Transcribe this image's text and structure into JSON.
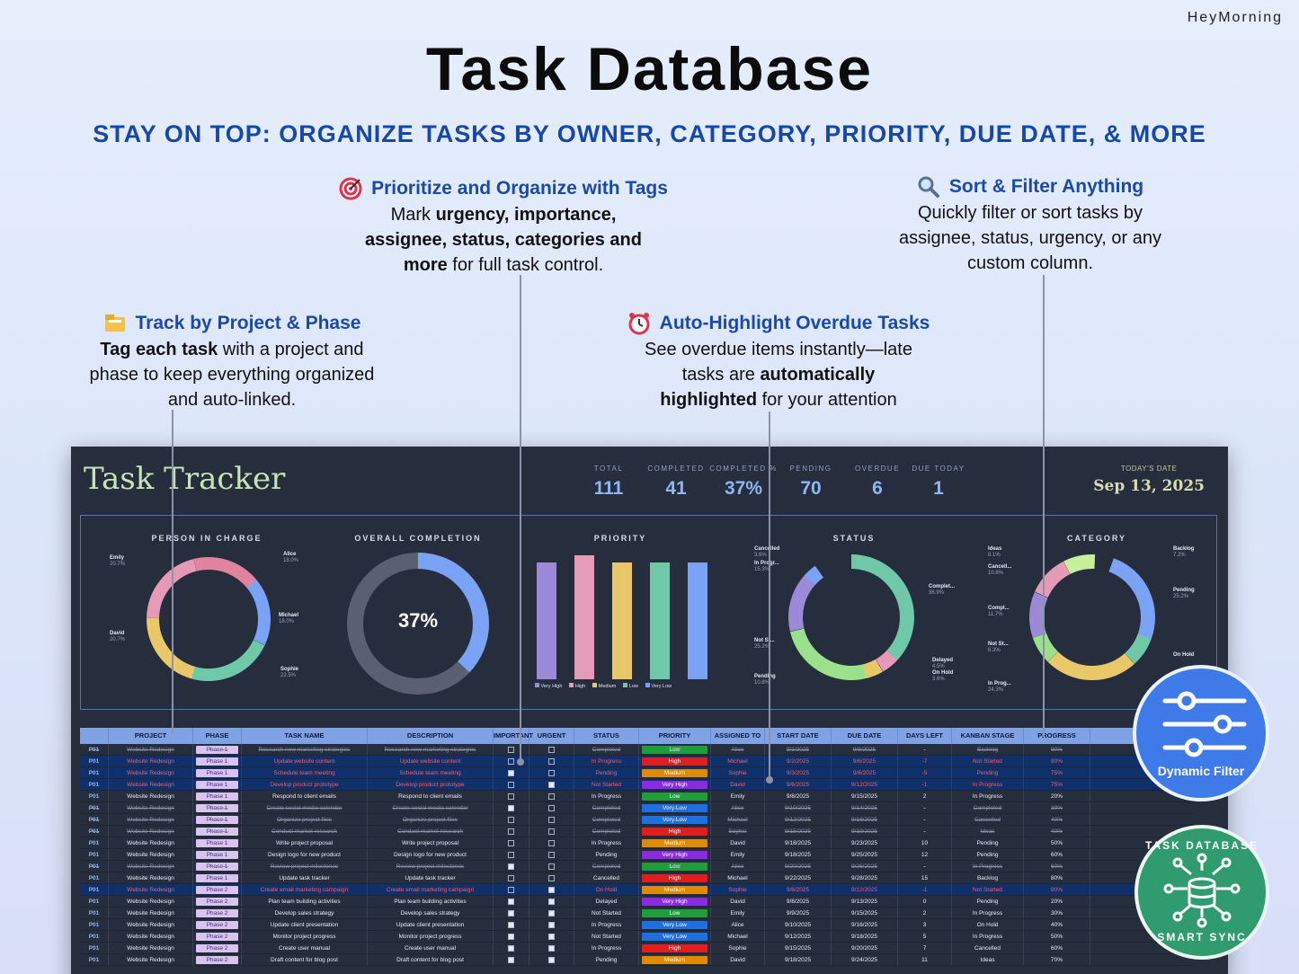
{
  "brand": "HeyMorning",
  "title": "Task Database",
  "subtitle": "STAY ON TOP: ORGANIZE TASKS BY OWNER, CATEGORY, PRIORITY, DUE DATE, & MORE",
  "features": {
    "tags": {
      "heading": "Prioritize and Organize with Tags",
      "l1a": "Mark ",
      "l1b": "urgency, importance,",
      "l2": "assignee, status, categories and",
      "l3a": "more",
      "l3b": " for full task control."
    },
    "sort": {
      "heading": "Sort & Filter Anything",
      "l1": "Quickly filter or sort tasks by",
      "l2": "assignee, status, urgency, or any",
      "l3": "custom column."
    },
    "project": {
      "heading": "Track by Project & Phase",
      "l1a": "Tag each task",
      "l1b": " with a project and",
      "l2": "phase to keep everything organized",
      "l3": "and auto-linked."
    },
    "overdue": {
      "heading": "Auto-Highlight Overdue Tasks",
      "l1": "See overdue items instantly—late",
      "l2a": "tasks are ",
      "l2b": "automatically",
      "l3a": "highlighted",
      "l3b": " for your attention"
    }
  },
  "dashboard": {
    "app_title": "Task Tracker",
    "kpis": [
      {
        "label": "TOTAL",
        "value": "111"
      },
      {
        "label": "COMPLETED",
        "value": "41"
      },
      {
        "label": "COMPLETED %",
        "value": "37%"
      },
      {
        "label": "PENDING",
        "value": "70"
      },
      {
        "label": "OVERDUE",
        "value": "6"
      },
      {
        "label": "DUE TODAY",
        "value": "1"
      }
    ],
    "today_label": "TODAY'S DATE",
    "today_value": "Sep 13, 2025",
    "charts": {
      "person": {
        "title": "PERSON IN CHARGE",
        "labels": [
          {
            "name": "Emily",
            "pct": "20.7%"
          },
          {
            "name": "Alice",
            "pct": "18.0%"
          },
          {
            "name": "Michael",
            "pct": "18.0%"
          },
          {
            "name": "Sophie",
            "pct": "22.5%"
          },
          {
            "name": "David",
            "pct": "20.7%"
          }
        ]
      },
      "completion": {
        "title": "OVERALL COMPLETION",
        "value": "37%"
      },
      "priority": {
        "title": "PRIORITY",
        "legend": [
          "Very High",
          "High",
          "Medium",
          "Low",
          "Very Low"
        ]
      },
      "status": {
        "title": "STATUS",
        "labels": [
          {
            "name": "Cancelled",
            "pct": "3.6%"
          },
          {
            "name": "In Progr...",
            "pct": "15.3%"
          },
          {
            "name": "Complet...",
            "pct": "36.9%"
          },
          {
            "name": "Not St...",
            "pct": "25.2%"
          },
          {
            "name": "Pending",
            "pct": "10.8%"
          },
          {
            "name": "Delayed",
            "pct": "4.5%"
          },
          {
            "name": "On Hold",
            "pct": "3.6%"
          }
        ]
      },
      "category": {
        "title": "CATEGORY",
        "labels": [
          {
            "name": "Ideas",
            "pct": "8.1%"
          },
          {
            "name": "Cancell...",
            "pct": "10.8%"
          },
          {
            "name": "Compl...",
            "pct": "11.7%"
          },
          {
            "name": "Not St...",
            "pct": "6.3%"
          },
          {
            "name": "In Prog...",
            "pct": "24.3%"
          },
          {
            "name": "Backlog",
            "pct": "7.2%"
          },
          {
            "name": "Pending",
            "pct": "25.2%"
          },
          {
            "name": "On Hold",
            "pct": ""
          }
        ]
      }
    },
    "columns": [
      "PROJECT",
      "PHASE",
      "TASK NAME",
      "DESCRIPTION",
      "IMPORTANT",
      "URGENT",
      "STATUS",
      "PRIORITY",
      "ASSIGNED TO",
      "START DATE",
      "DUE DATE",
      "DAYS LEFT",
      "KANBAN STAGE",
      "PROGRESS"
    ],
    "rows": [
      {
        "id": "P01",
        "project": "Website Redesign",
        "phase": "Phase 1",
        "task": "Research new marketing strategies",
        "desc": "Research new marketing strategies",
        "imp": false,
        "urg": false,
        "status": "Completed",
        "priority": "Low",
        "owner": "Alice",
        "start": "9/1/2025",
        "due": "9/8/2025",
        "days": "-",
        "kanban": "Backlog",
        "progress": "90%",
        "kind": "done"
      },
      {
        "id": "P01",
        "project": "Website Redesign",
        "phase": "Phase 1",
        "task": "Update website content",
        "desc": "Update website content",
        "imp": false,
        "urg": false,
        "status": "In Progress",
        "priority": "High",
        "owner": "Michael",
        "start": "9/2/2025",
        "due": "9/6/2025",
        "days": "-7",
        "kanban": "Not Started",
        "progress": "80%",
        "kind": "over"
      },
      {
        "id": "P01",
        "project": "Website Redesign",
        "phase": "Phase 1",
        "task": "Schedule team meeting",
        "desc": "Schedule team meeting",
        "imp": true,
        "urg": false,
        "status": "Pending",
        "priority": "Medium",
        "owner": "Sophie",
        "start": "9/3/2025",
        "due": "9/8/2025",
        "days": "-5",
        "kanban": "Pending",
        "progress": "75%",
        "kind": "over"
      },
      {
        "id": "P01",
        "project": "Website Redesign",
        "phase": "Phase 1",
        "task": "Develop product prototype",
        "desc": "Develop product prototype",
        "imp": false,
        "urg": true,
        "status": "Not Started",
        "priority": "Very High",
        "owner": "David",
        "start": "9/6/2025",
        "due": "9/12/2025",
        "days": "-1",
        "kanban": "In Progress",
        "progress": "75%",
        "kind": "over"
      },
      {
        "id": "P01",
        "project": "Website Redesign",
        "phase": "Phase 1",
        "task": "Respond to client emails",
        "desc": "Respond to client emails",
        "imp": false,
        "urg": false,
        "status": "In Progress",
        "priority": "Low",
        "owner": "Emily",
        "start": "9/8/2025",
        "due": "9/15/2025",
        "days": "2",
        "kanban": "In Progress",
        "progress": "20%",
        "kind": ""
      },
      {
        "id": "P01",
        "project": "Website Redesign",
        "phase": "Phase 1",
        "task": "Create social media calendar",
        "desc": "Create social media calendar",
        "imp": true,
        "urg": false,
        "status": "Completed",
        "priority": "Very Low",
        "owner": "Alice",
        "start": "9/10/2025",
        "due": "9/14/2025",
        "days": "-",
        "kanban": "Completed",
        "progress": "30%",
        "kind": "done"
      },
      {
        "id": "P01",
        "project": "Website Redesign",
        "phase": "Phase 1",
        "task": "Organize project files",
        "desc": "Organize project files",
        "imp": false,
        "urg": false,
        "status": "Completed",
        "priority": "Very Low",
        "owner": "Michael",
        "start": "9/12/2025",
        "due": "9/18/2025",
        "days": "-",
        "kanban": "Cancelled",
        "progress": "40%",
        "kind": "done"
      },
      {
        "id": "P01",
        "project": "Website Redesign",
        "phase": "Phase 1",
        "task": "Conduct market research",
        "desc": "Conduct market research",
        "imp": false,
        "urg": false,
        "status": "Completed",
        "priority": "High",
        "owner": "Sophie",
        "start": "9/15/2025",
        "due": "9/19/2025",
        "days": "-",
        "kanban": "Ideas",
        "progress": "40%",
        "kind": "done"
      },
      {
        "id": "P01",
        "project": "Website Redesign",
        "phase": "Phase 1",
        "task": "Write project proposal",
        "desc": "Write project proposal",
        "imp": false,
        "urg": false,
        "status": "In Progress",
        "priority": "Medium",
        "owner": "David",
        "start": "9/18/2025",
        "due": "9/23/2025",
        "days": "10",
        "kanban": "Pending",
        "progress": "50%",
        "kind": ""
      },
      {
        "id": "P01",
        "project": "Website Redesign",
        "phase": "Phase 1",
        "task": "Design logo for new product",
        "desc": "Design logo for new product",
        "imp": false,
        "urg": false,
        "status": "Pending",
        "priority": "Very High",
        "owner": "Emily",
        "start": "9/18/2025",
        "due": "9/25/2025",
        "days": "12",
        "kanban": "Pending",
        "progress": "60%",
        "kind": ""
      },
      {
        "id": "P01",
        "project": "Website Redesign",
        "phase": "Phase 1",
        "task": "Review project milestones",
        "desc": "Review project milestones",
        "imp": true,
        "urg": false,
        "status": "Completed",
        "priority": "Low",
        "owner": "Alice",
        "start": "9/20/2025",
        "due": "9/26/2025",
        "days": "-",
        "kanban": "In Progress",
        "progress": "60%",
        "kind": "done"
      },
      {
        "id": "P01",
        "project": "Website Redesign",
        "phase": "Phase 1",
        "task": "Update task tracker",
        "desc": "Update task tracker",
        "imp": false,
        "urg": false,
        "status": "Cancelled",
        "priority": "High",
        "owner": "Michael",
        "start": "9/22/2025",
        "due": "9/28/2025",
        "days": "15",
        "kanban": "Backlog",
        "progress": "80%",
        "kind": ""
      },
      {
        "id": "P01",
        "project": "Website Redesign",
        "phase": "Phase 2",
        "task": "Create email marketing campaign",
        "desc": "Create email marketing campaign",
        "imp": false,
        "urg": true,
        "status": "On Hold",
        "priority": "Medium",
        "owner": "Sophie",
        "start": "9/6/2025",
        "due": "9/12/2025",
        "days": "-1",
        "kanban": "Not Started",
        "progress": "90%",
        "kind": "over"
      },
      {
        "id": "P01",
        "project": "Website Redesign",
        "phase": "Phase 2",
        "task": "Plan team building activities",
        "desc": "Plan team building activities",
        "imp": true,
        "urg": true,
        "status": "Delayed",
        "priority": "Very High",
        "owner": "David",
        "start": "9/8/2025",
        "due": "9/13/2025",
        "days": "0",
        "kanban": "Pending",
        "progress": "20%",
        "kind": ""
      },
      {
        "id": "P01",
        "project": "Website Redesign",
        "phase": "Phase 2",
        "task": "Develop sales strategy",
        "desc": "Develop sales strategy",
        "imp": true,
        "urg": true,
        "status": "Not Started",
        "priority": "Low",
        "owner": "Emily",
        "start": "9/9/2025",
        "due": "9/15/2025",
        "days": "2",
        "kanban": "In Progress",
        "progress": "30%",
        "kind": ""
      },
      {
        "id": "P01",
        "project": "Website Redesign",
        "phase": "Phase 2",
        "task": "Update client presentation",
        "desc": "Update client presentation",
        "imp": true,
        "urg": true,
        "status": "In Progress",
        "priority": "Very Low",
        "owner": "Alice",
        "start": "9/10/2025",
        "due": "9/16/2025",
        "days": "3",
        "kanban": "On Hold",
        "progress": "40%",
        "kind": ""
      },
      {
        "id": "P01",
        "project": "Website Redesign",
        "phase": "Phase 2",
        "task": "Monitor project progress",
        "desc": "Monitor project progress",
        "imp": true,
        "urg": true,
        "status": "Not Started",
        "priority": "Very Low",
        "owner": "Michael",
        "start": "9/12/2025",
        "due": "9/18/2025",
        "days": "5",
        "kanban": "In Progress",
        "progress": "50%",
        "kind": ""
      },
      {
        "id": "P01",
        "project": "Website Redesign",
        "phase": "Phase 2",
        "task": "Create user manual",
        "desc": "Create user manual",
        "imp": true,
        "urg": true,
        "status": "In Progress",
        "priority": "High",
        "owner": "Sophie",
        "start": "9/15/2025",
        "due": "9/20/2025",
        "days": "7",
        "kanban": "Cancelled",
        "progress": "60%",
        "kind": ""
      },
      {
        "id": "P01",
        "project": "Website Redesign",
        "phase": "Phase 2",
        "task": "Draft content for blog post",
        "desc": "Draft content for blog post",
        "imp": true,
        "urg": true,
        "status": "Pending",
        "priority": "Medium",
        "owner": "David",
        "start": "9/18/2025",
        "due": "9/24/2025",
        "days": "11",
        "kanban": "Ideas",
        "progress": "70%",
        "kind": ""
      }
    ]
  },
  "badges": {
    "filter": "Dynamic Filter",
    "sync_top": "TASK DATABASE",
    "sync_bottom": "SMART SYNC"
  },
  "colors": {
    "very_high": "#8a2be2",
    "high": "#e01e1e",
    "medium": "#e08a00",
    "low": "#1f9d3a",
    "very_low": "#1f6fe0"
  }
}
